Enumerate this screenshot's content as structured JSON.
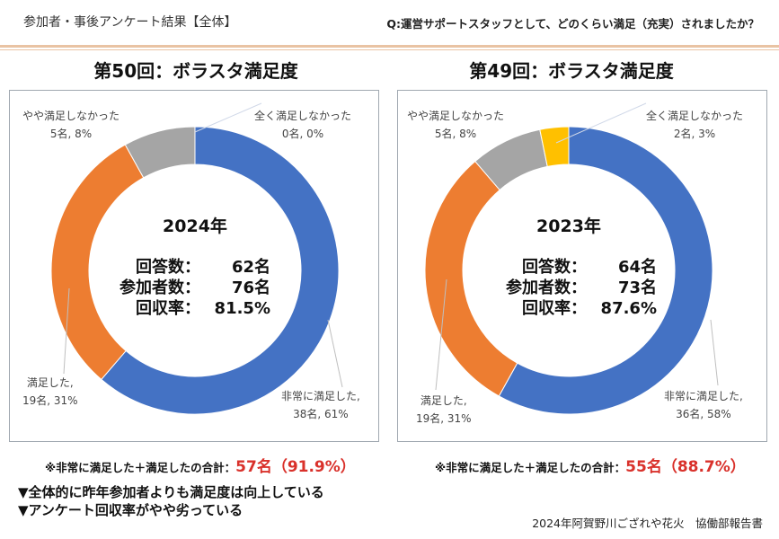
{
  "header": {
    "section_title": "参加者・事後アンケート結果【全体】",
    "question": "Q:運営サポートスタッフとして、どのくらい満足（充実）されましたか？"
  },
  "colors": {
    "very_satisfied": "#4472c4",
    "satisfied": "#ed7d31",
    "somewhat_unsatisfied": "#a5a5a5",
    "not_satisfied": "#ffc000",
    "highlight": "#d9312b"
  },
  "chart_data": [
    {
      "type": "pie",
      "title": "第50回：ボラスタ満足度",
      "center_year": "2024年",
      "categories": [
        "非常に満足した",
        "満足した",
        "やや満足しなかった",
        "全く満足しなかった"
      ],
      "values": [
        38,
        19,
        5,
        0
      ],
      "percents": [
        61,
        31,
        8,
        0
      ],
      "labels": [
        {
          "line1": "非常に満足した,",
          "line2": "38名, 61%"
        },
        {
          "line1": "満足した,",
          "line2": "19名, 31%"
        },
        {
          "line1": "やや満足しなかった",
          "line2": "5名, 8%"
        },
        {
          "line1": "全く満足しなかった",
          "line2": "0名, 0%"
        }
      ],
      "stats": [
        {
          "key": "回答数：",
          "value": "62名"
        },
        {
          "key": "参加者数：",
          "value": "76名"
        },
        {
          "key": "回収率：",
          "value": "81.5%"
        }
      ],
      "total_label": "※非常に満足した＋満足したの合計：",
      "total_value": "57名（91.9%）"
    },
    {
      "type": "pie",
      "title": "第49回：ボラスタ満足度",
      "center_year": "2023年",
      "categories": [
        "非常に満足した",
        "満足した",
        "やや満足しなかった",
        "全く満足しなかった"
      ],
      "values": [
        36,
        19,
        5,
        2
      ],
      "percents": [
        58,
        31,
        8,
        3
      ],
      "labels": [
        {
          "line1": "非常に満足した,",
          "line2": "36名, 58%"
        },
        {
          "line1": "満足した,",
          "line2": "19名, 31%"
        },
        {
          "line1": "やや満足しなかった",
          "line2": "5名, 8%"
        },
        {
          "line1": "全く満足しなかった",
          "line2": "2名, 3%"
        }
      ],
      "stats": [
        {
          "key": "回答数：",
          "value": "64名"
        },
        {
          "key": "参加者数：",
          "value": "73名"
        },
        {
          "key": "回収率：",
          "value": "87.6%"
        }
      ],
      "total_label": "※非常に満足した＋満足したの合計：",
      "total_value": "55名（88.7%）"
    }
  ],
  "notes": [
    "▼全体的に昨年参加者よりも満足度は向上している",
    "▼アンケート回収率がやや劣っている"
  ],
  "footer": "2024年阿賀野川ござれや花火　協働部報告書"
}
